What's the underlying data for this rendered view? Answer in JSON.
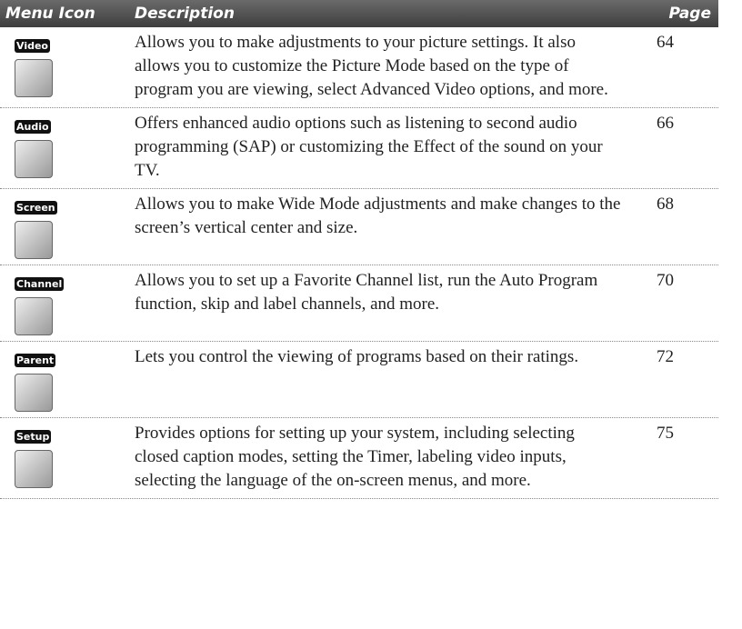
{
  "table": {
    "header": [
      "Menu Icon",
      "Description",
      "Page"
    ],
    "rows": [
      {
        "icon": "Video",
        "description": "Allows you to make adjustments to your picture settings. It also allows you to customize the Picture Mode based on the type of program you are viewing, select Advanced Video options, and more.",
        "page": 64
      },
      {
        "icon": "Audio",
        "description": "Offers enhanced audio options such as listening to second audio programming (SAP) or customizing the Effect of the sound on your TV.",
        "page": 66
      },
      {
        "icon": "Screen",
        "description": "Allows you to make Wide Mode adjustments and make changes to the screen’s vertical center and size.",
        "page": 68
      },
      {
        "icon": "Channel",
        "description": "Allows you to set up a Favorite Channel list, run the Auto Program function, skip and label channels, and more.",
        "page": 70
      },
      {
        "icon": "Parent",
        "description": "Lets you control the viewing of programs based on their ratings.",
        "page": 72
      },
      {
        "icon": "Setup",
        "description": "Provides options for  setting up your system, including selecting closed caption modes, setting the Timer, labeling video inputs, selecting the language of the on-screen menus, and more.",
        "page": 75
      }
    ]
  }
}
